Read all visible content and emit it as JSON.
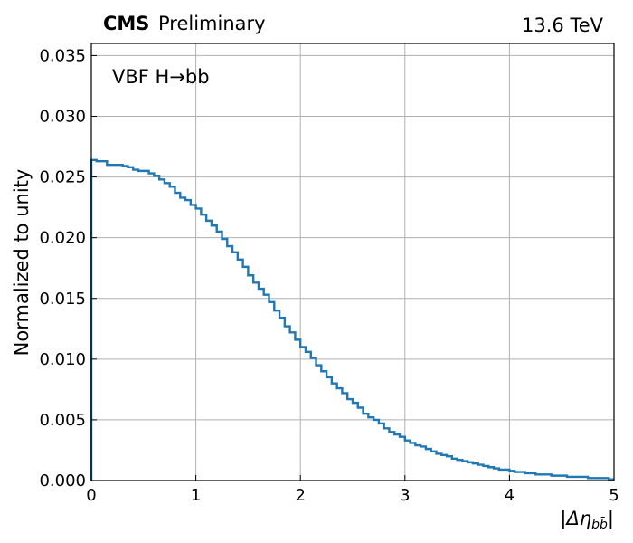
{
  "chart_data": {
    "type": "line",
    "style": "step-histogram",
    "experiment": "CMS",
    "status": "Preliminary",
    "energy": "13.6 TeV",
    "annotation": "VBF H→bb",
    "xlabel": "|Δη",
    "xlabel_sub": "b",
    "xlabel_sub2": "b̄",
    "xlabel_close": "|",
    "ylabel": "Normalized to unity",
    "xlim": [
      0,
      5
    ],
    "ylim": [
      0,
      0.036
    ],
    "x_ticks": [
      0,
      1,
      2,
      3,
      4,
      5
    ],
    "x_tick_labels": [
      "0",
      "1",
      "2",
      "3",
      "4",
      "5"
    ],
    "y_ticks": [
      0,
      0.005,
      0.01,
      0.015,
      0.02,
      0.025,
      0.03,
      0.035
    ],
    "y_tick_labels": [
      "0.000",
      "0.005",
      "0.010",
      "0.015",
      "0.020",
      "0.025",
      "0.030",
      "0.035"
    ],
    "grid": true,
    "line_color": "#1f77b4",
    "bin_width": 0.05,
    "bin_edges_start": 0,
    "series": [
      {
        "values": [
          0.0264,
          0.0263,
          0.0263,
          0.026,
          0.026,
          0.026,
          0.0259,
          0.0258,
          0.0256,
          0.0255,
          0.0255,
          0.0253,
          0.0251,
          0.0248,
          0.0245,
          0.0242,
          0.0237,
          0.0233,
          0.0231,
          0.0227,
          0.0224,
          0.0219,
          0.0214,
          0.021,
          0.0205,
          0.0199,
          0.0193,
          0.0188,
          0.0182,
          0.0176,
          0.0169,
          0.0163,
          0.0158,
          0.0153,
          0.0147,
          0.014,
          0.0134,
          0.0127,
          0.0122,
          0.0116,
          0.011,
          0.0106,
          0.0101,
          0.0095,
          0.009,
          0.0085,
          0.008,
          0.0076,
          0.0072,
          0.0067,
          0.0064,
          0.006,
          0.0055,
          0.0052,
          0.005,
          0.0047,
          0.0043,
          0.004,
          0.0038,
          0.0036,
          0.0033,
          0.0031,
          0.0029,
          0.0028,
          0.0026,
          0.0024,
          0.0022,
          0.0021,
          0.002,
          0.0018,
          0.0017,
          0.0016,
          0.0015,
          0.0014,
          0.0013,
          0.0012,
          0.0011,
          0.001,
          0.0009,
          0.0009,
          0.0008,
          0.0007,
          0.0007,
          0.0006,
          0.0006,
          0.0005,
          0.0005,
          0.0005,
          0.0004,
          0.0004,
          0.0004,
          0.0003,
          0.0003,
          0.0003,
          0.0003,
          0.0002,
          0.0002,
          0.0002,
          0.0002,
          0.0001
        ]
      }
    ]
  }
}
